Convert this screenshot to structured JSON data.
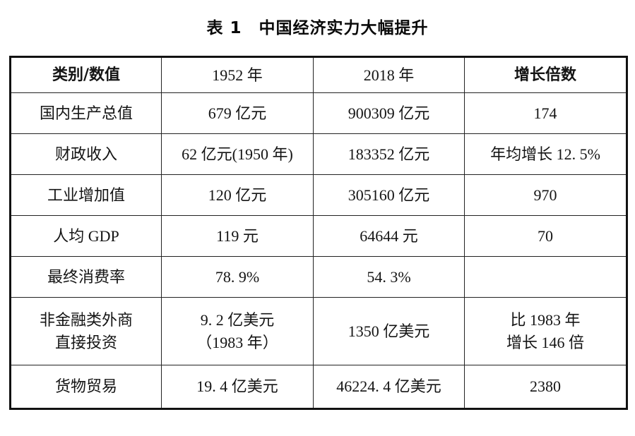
{
  "title": "表 1　中国经济实力大幅提升",
  "table": {
    "headers": {
      "category": "类别/数值",
      "y1952": "1952 年",
      "y2018": "2018 年",
      "growth": "增长倍数"
    },
    "rows": [
      {
        "category": "国内生产总值",
        "y1952": "679 亿元",
        "y2018": "900309 亿元",
        "growth": "174"
      },
      {
        "category": "财政收入",
        "y1952": "62 亿元(1950 年)",
        "y2018": "183352 亿元",
        "growth": "年均增长 12. 5%"
      },
      {
        "category": "工业增加值",
        "y1952": "120 亿元",
        "y2018": "305160 亿元",
        "growth": "970"
      },
      {
        "category": "人均 GDP",
        "y1952": "119 元",
        "y2018": "64644 元",
        "growth": "70"
      },
      {
        "category": "最终消费率",
        "y1952": "78. 9%",
        "y2018": "54. 3%",
        "growth": ""
      },
      {
        "category": "非金融类外商\n直接投资",
        "y1952": "9. 2 亿美元\n（1983 年）",
        "y2018": "1350 亿美元",
        "growth": "比 1983 年\n增长 146 倍"
      },
      {
        "category": "货物贸易",
        "y1952": "19. 4 亿美元",
        "y2018": "46224. 4 亿美元",
        "growth": "2380"
      }
    ]
  }
}
